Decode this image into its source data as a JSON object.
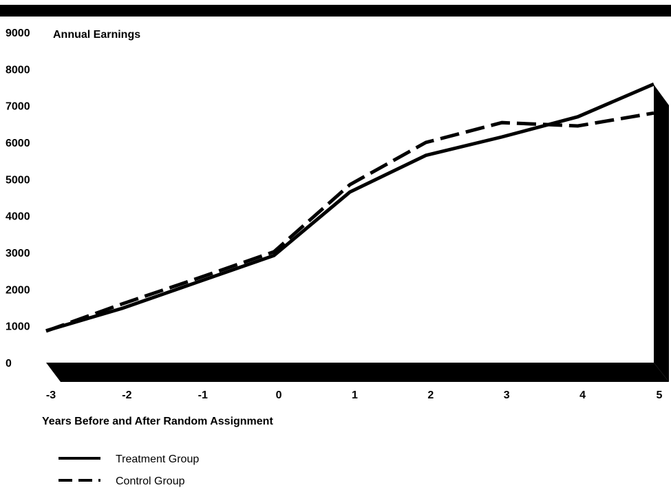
{
  "chart_data": {
    "type": "line",
    "ylabel": "Annual Earnings",
    "xlabel": "Years Before and After Random Assignment",
    "x": [
      -3,
      -2,
      -1,
      0,
      1,
      2,
      3,
      4,
      5
    ],
    "x_tick_labels": [
      "-3",
      "-2",
      "-1",
      "0",
      "1",
      "2",
      "3",
      "4",
      "5"
    ],
    "y_ticks": [
      0,
      1000,
      2000,
      3000,
      4000,
      5000,
      6000,
      7000,
      8000,
      9000
    ],
    "y_tick_labels": [
      "0",
      "1000",
      "2000",
      "3000",
      "4000",
      "5000",
      "6000",
      "7000",
      "8000",
      "9000"
    ],
    "ylim": [
      0,
      9000
    ],
    "xlim": [
      -3,
      5
    ],
    "grid": false,
    "legend_position": "bottom-left",
    "series": [
      {
        "name": "Treatment Group",
        "style": "solid",
        "color": "#000000",
        "values": [
          870,
          1480,
          2200,
          2920,
          4650,
          5650,
          6150,
          6700,
          7590
        ]
      },
      {
        "name": "Control Group",
        "style": "dashed",
        "color": "#000000",
        "values": [
          860,
          1600,
          2300,
          3020,
          4850,
          6000,
          6540,
          6450,
          6800
        ]
      }
    ]
  }
}
